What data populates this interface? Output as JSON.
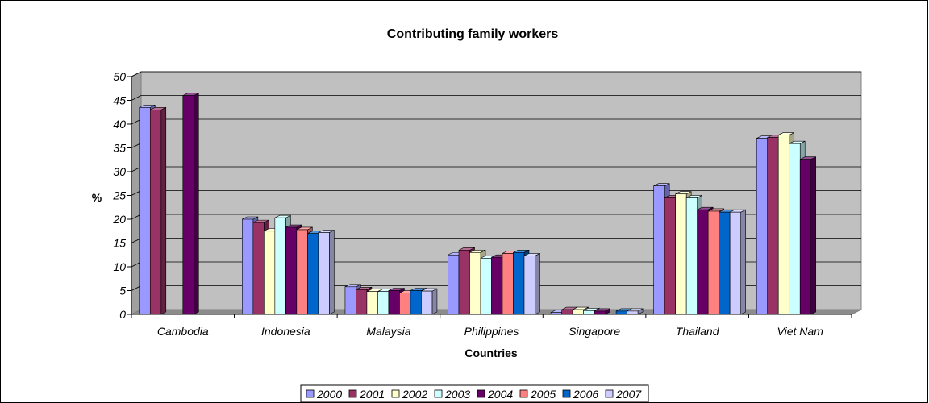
{
  "chart_data": {
    "type": "bar",
    "title": "Contributing family workers",
    "xlabel": "Countries",
    "ylabel": "%",
    "ylim": [
      0,
      50
    ],
    "yticks": [
      "0",
      "5",
      "10",
      "15",
      "20",
      "25",
      "30",
      "35",
      "40",
      "45",
      "50"
    ],
    "grid": true,
    "legend_position": "bottom",
    "style": "3d-clustered-column",
    "categories": [
      "Cambodia",
      "Indonesia",
      "Malaysia",
      "Philippines",
      "Singapore",
      "Thailand",
      "Viet Nam"
    ],
    "series": [
      {
        "name": "2000",
        "color": "#9999FF",
        "values": [
          43.5,
          20.0,
          5.8,
          12.5,
          0.4,
          27.0,
          37.0
        ]
      },
      {
        "name": "2001",
        "color": "#993366",
        "values": [
          43.0,
          19.3,
          5.2,
          13.5,
          1.0,
          24.5,
          37.2
        ]
      },
      {
        "name": "2002",
        "color": "#FFFFCC",
        "values": [
          null,
          17.5,
          4.8,
          13.0,
          1.0,
          25.3,
          37.7
        ]
      },
      {
        "name": "2003",
        "color": "#CCFFFF",
        "values": [
          null,
          20.3,
          4.8,
          11.8,
          0.8,
          24.5,
          35.9
        ]
      },
      {
        "name": "2004",
        "color": "#660066",
        "values": [
          46.0,
          18.3,
          5.0,
          12.0,
          0.7,
          22.0,
          32.6
        ]
      },
      {
        "name": "2005",
        "color": "#FF8080",
        "values": [
          null,
          17.8,
          4.5,
          12.8,
          null,
          21.7,
          null
        ]
      },
      {
        "name": "2006",
        "color": "#0066CC",
        "values": [
          null,
          17.0,
          5.0,
          13.0,
          0.7,
          21.5,
          null
        ]
      },
      {
        "name": "2007",
        "color": "#CCCCFF",
        "values": [
          null,
          17.2,
          4.9,
          12.3,
          0.7,
          21.5,
          null
        ]
      }
    ]
  }
}
